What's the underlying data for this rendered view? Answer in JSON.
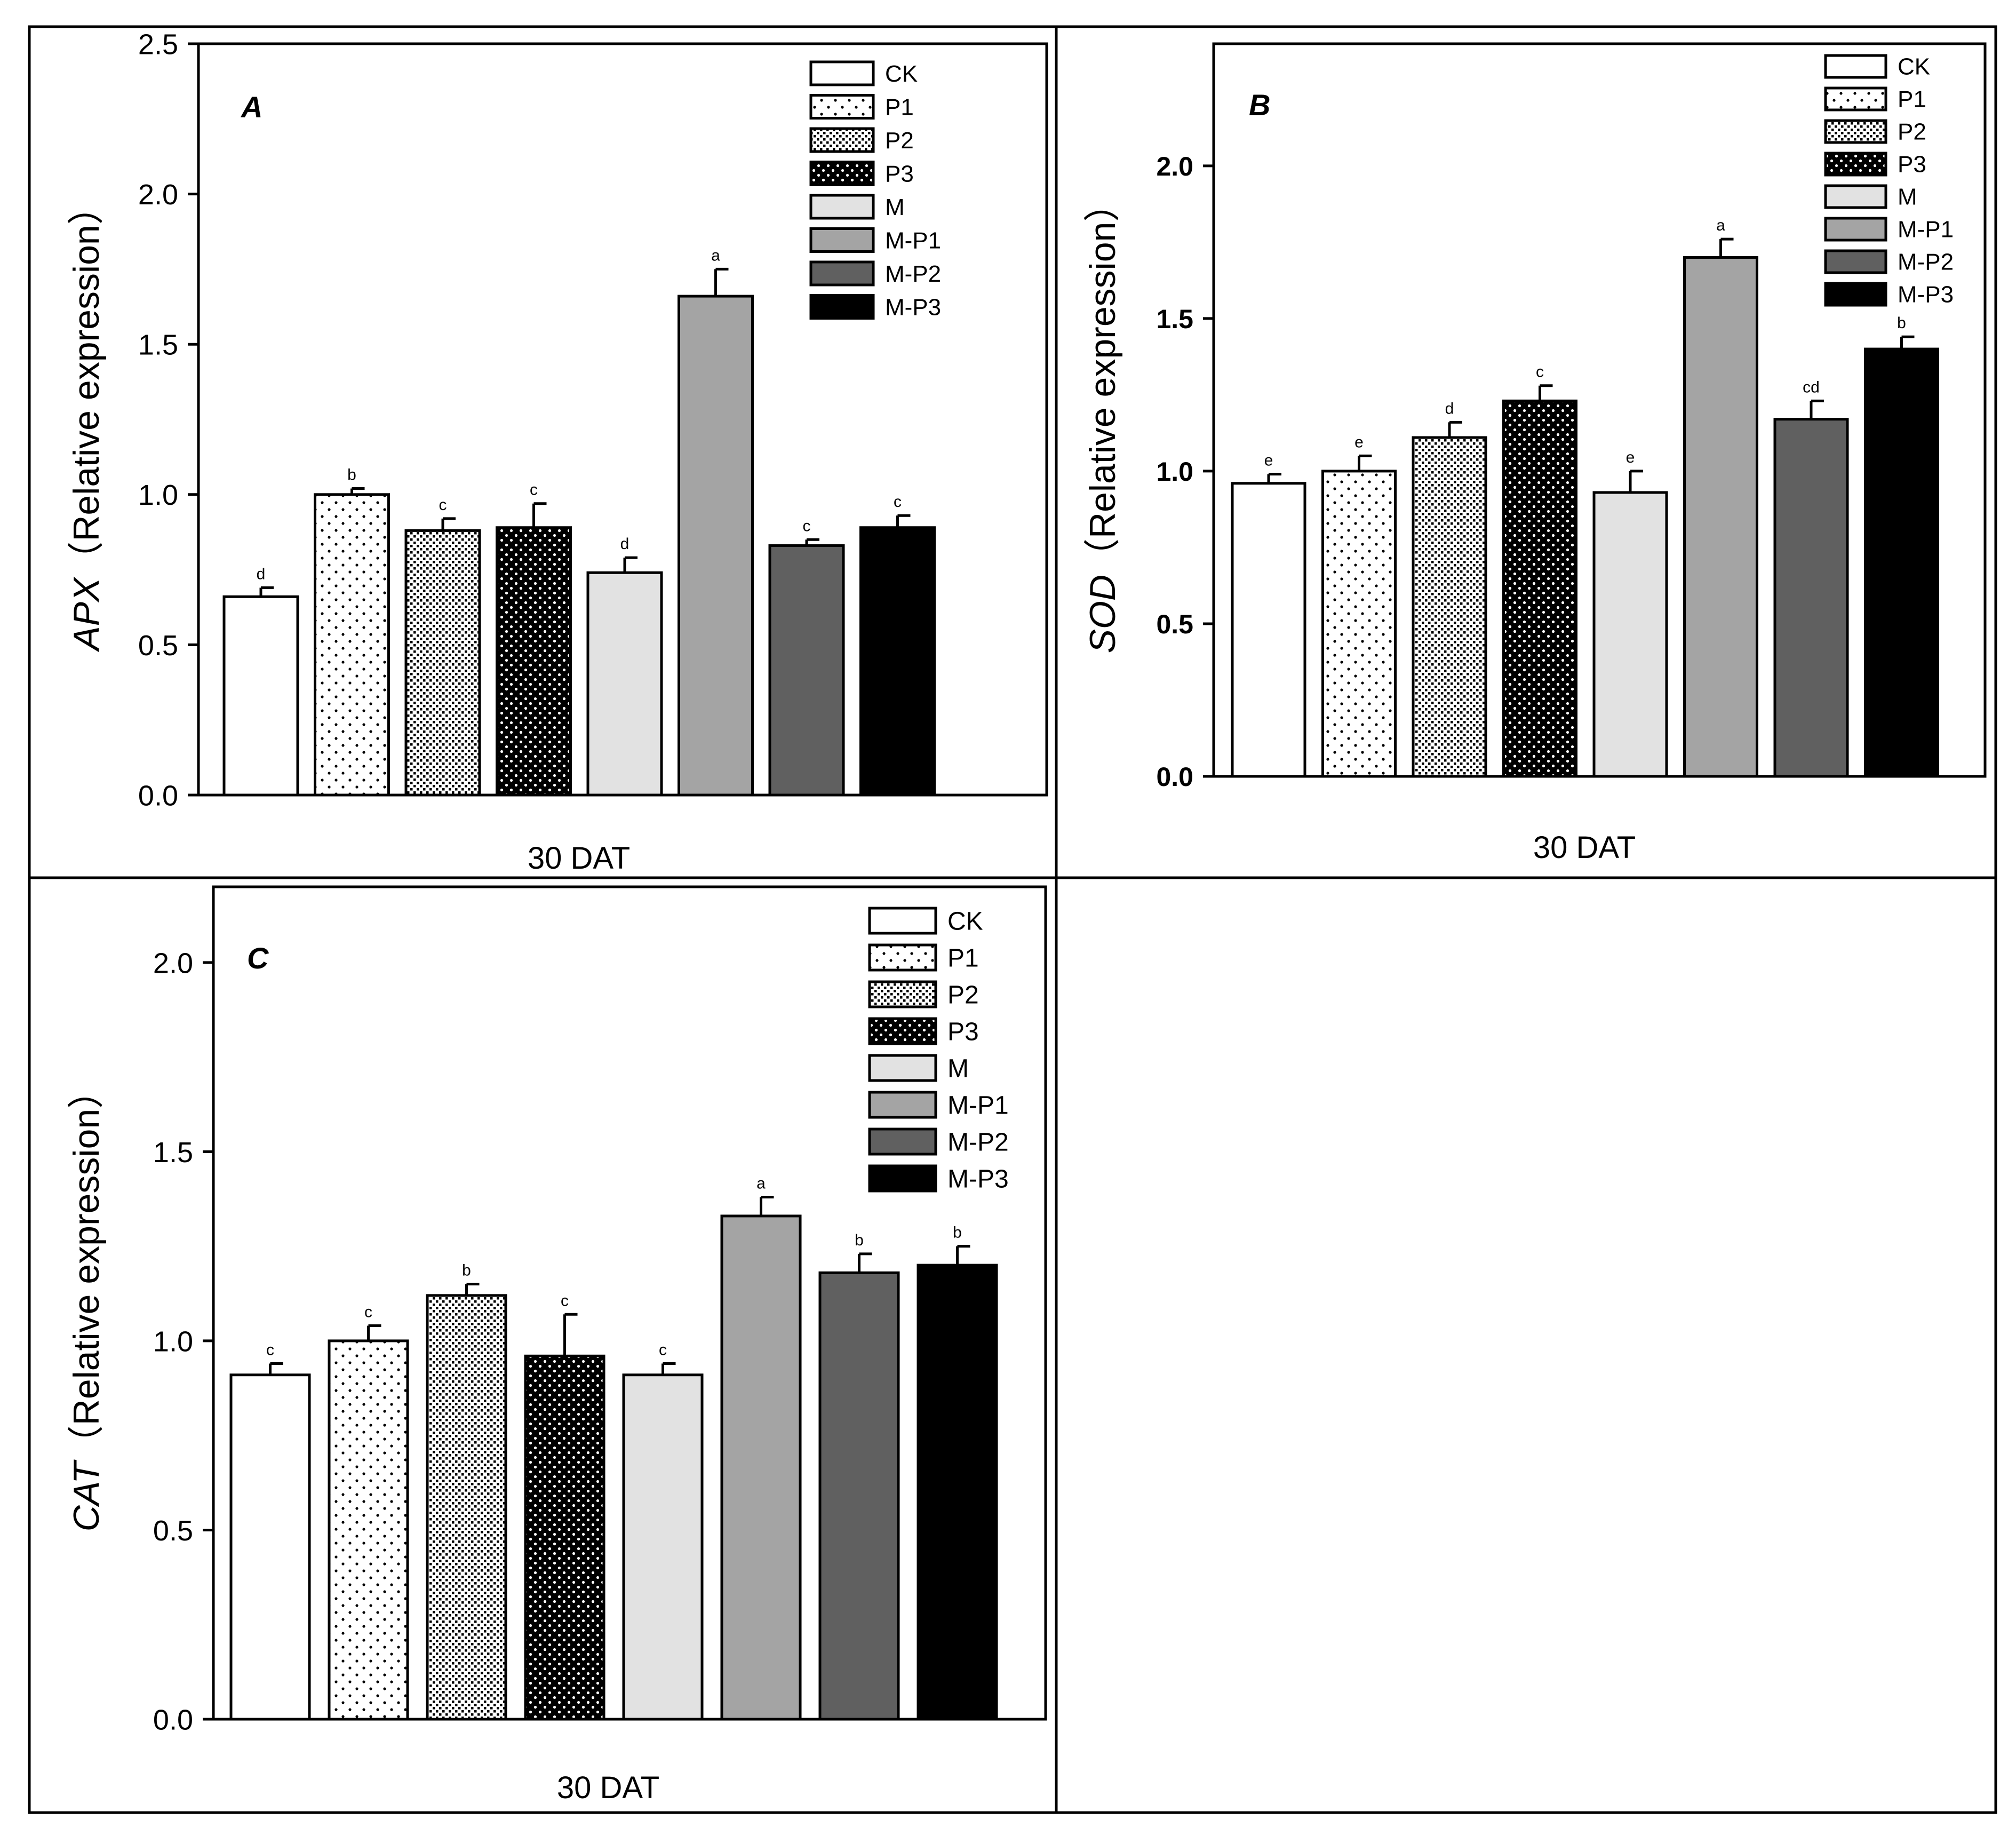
{
  "chart_data": [
    {
      "type": "bar",
      "panel": "A",
      "title": "A",
      "xlabel": "30 DAT",
      "ylabel_gene": "APX",
      "ylabel_rest": "（Relative expression）",
      "ylim": [
        0,
        2.5
      ],
      "yticks": [
        "0.0",
        "0.5",
        "1.0",
        "1.5",
        "2.0",
        "2.5"
      ],
      "categories": [
        "CK",
        "P1",
        "P2",
        "P3",
        "M",
        "M-P1",
        "M-P2",
        "M-P3"
      ],
      "values": [
        0.66,
        1.0,
        0.88,
        0.89,
        0.74,
        1.66,
        0.83,
        0.89
      ],
      "errors": [
        0.03,
        0.02,
        0.04,
        0.08,
        0.05,
        0.09,
        0.02,
        0.04
      ],
      "letters": [
        "d",
        "b",
        "c",
        "c",
        "d",
        "a",
        "c",
        "c"
      ]
    },
    {
      "type": "bar",
      "panel": "B",
      "title": "B",
      "xlabel": "30 DAT",
      "ylabel_gene": "SOD",
      "ylabel_rest": "（Relative expression）",
      "ylim": [
        0,
        2.4
      ],
      "yticks": [
        "0.0",
        "0.5",
        "1.0",
        "1.5",
        "2.0"
      ],
      "categories": [
        "CK",
        "P1",
        "P2",
        "P3",
        "M",
        "M-P1",
        "M-P2",
        "M-P3"
      ],
      "values": [
        0.96,
        1.0,
        1.11,
        1.23,
        0.93,
        1.7,
        1.17,
        1.4
      ],
      "errors": [
        0.03,
        0.05,
        0.05,
        0.05,
        0.07,
        0.06,
        0.06,
        0.04
      ],
      "letters": [
        "e",
        "e",
        "d",
        "c",
        "e",
        "a",
        "cd",
        "b"
      ]
    },
    {
      "type": "bar",
      "panel": "C",
      "title": "C",
      "xlabel": "30 DAT",
      "ylabel_gene": "CAT",
      "ylabel_rest": "（Relative expression）",
      "ylim": [
        0,
        2.2
      ],
      "yticks": [
        "0.0",
        "0.5",
        "1.0",
        "1.5",
        "2.0"
      ],
      "categories": [
        "CK",
        "P1",
        "P2",
        "P3",
        "M",
        "M-P1",
        "M-P2",
        "M-P3"
      ],
      "values": [
        0.91,
        1.0,
        1.12,
        0.96,
        0.91,
        1.33,
        1.18,
        1.2
      ],
      "errors": [
        0.03,
        0.04,
        0.03,
        0.11,
        0.03,
        0.05,
        0.05,
        0.05
      ],
      "letters": [
        "c",
        "c",
        "b",
        "c",
        "c",
        "a",
        "b",
        "b"
      ]
    }
  ],
  "colors": {
    "CK": "#ffffff",
    "P1": "#ffffff",
    "P2": "#d0d0d0",
    "P3": "#1a1a1a",
    "M": "#e2e2e2",
    "M-P1": "#a4a4a4",
    "M-P2": "#606060",
    "M-P3": "#000000"
  }
}
